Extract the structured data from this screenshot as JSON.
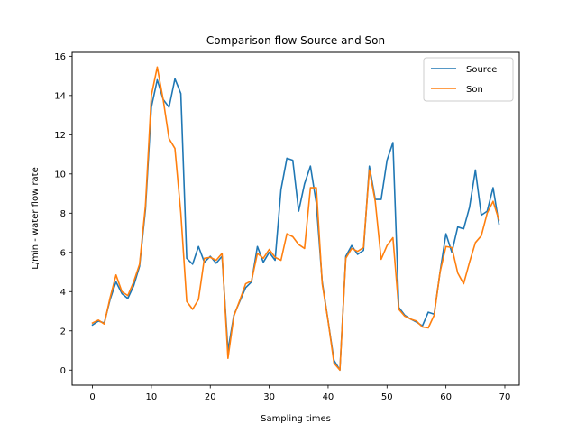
{
  "chart_data": {
    "type": "line",
    "title": "Comparison flow Source and Son",
    "xlabel": "Sampling times",
    "ylabel": "L/min - water flow rate",
    "xlim": [
      -3.45,
      72.45
    ],
    "ylim": [
      -0.77,
      16.2
    ],
    "xticks": [
      0,
      10,
      20,
      30,
      40,
      50,
      60,
      70
    ],
    "yticks": [
      0,
      2,
      4,
      6,
      8,
      10,
      12,
      14,
      16
    ],
    "grid": false,
    "legend_position": "top-right",
    "series": [
      {
        "name": "Source",
        "color": "#1f77b4",
        "x": [
          0,
          1,
          2,
          3,
          4,
          5,
          6,
          7,
          8,
          9,
          10,
          11,
          12,
          13,
          14,
          15,
          16,
          17,
          18,
          19,
          20,
          21,
          22,
          23,
          24,
          25,
          26,
          27,
          28,
          29,
          30,
          31,
          32,
          33,
          34,
          35,
          36,
          37,
          38,
          39,
          40,
          41,
          42,
          43,
          44,
          45,
          46,
          47,
          48,
          49,
          50,
          51,
          52,
          53,
          54,
          55,
          56,
          57,
          58,
          59,
          60,
          61,
          62,
          63,
          64,
          65,
          66,
          67,
          68,
          69
        ],
        "values": [
          2.3,
          2.5,
          2.4,
          3.6,
          4.5,
          3.9,
          3.65,
          4.3,
          5.3,
          8.2,
          13.4,
          14.8,
          13.8,
          13.4,
          14.85,
          14.1,
          5.7,
          5.4,
          6.3,
          5.5,
          5.8,
          5.45,
          5.8,
          1.0,
          2.8,
          3.5,
          4.2,
          4.5,
          6.3,
          5.5,
          6.0,
          5.6,
          9.2,
          10.8,
          10.7,
          8.1,
          9.5,
          10.4,
          8.5,
          4.5,
          2.5,
          0.5,
          0.0,
          5.8,
          6.35,
          5.9,
          6.1,
          10.4,
          8.7,
          8.7,
          10.7,
          11.6,
          3.2,
          2.8,
          2.6,
          2.45,
          2.25,
          2.95,
          2.85,
          5.0,
          6.95,
          6.0,
          7.3,
          7.2,
          8.3,
          10.2,
          7.9,
          8.1,
          9.3,
          7.45
        ]
      },
      {
        "name": "Son",
        "color": "#ff7f0e",
        "x": [
          0,
          1,
          2,
          3,
          4,
          5,
          6,
          7,
          8,
          9,
          10,
          11,
          12,
          13,
          14,
          15,
          16,
          17,
          18,
          19,
          20,
          21,
          22,
          23,
          24,
          25,
          26,
          27,
          28,
          29,
          30,
          31,
          32,
          33,
          34,
          35,
          36,
          37,
          38,
          39,
          40,
          41,
          42,
          43,
          44,
          45,
          46,
          47,
          48,
          49,
          50,
          51,
          52,
          53,
          54,
          55,
          56,
          57,
          58,
          59,
          60,
          61,
          62,
          63,
          64,
          65,
          66,
          67,
          68,
          69
        ],
        "values": [
          2.4,
          2.55,
          2.35,
          3.7,
          4.85,
          4.0,
          3.8,
          4.5,
          5.4,
          8.4,
          14.0,
          15.45,
          13.8,
          11.8,
          11.3,
          8.0,
          3.5,
          3.1,
          3.6,
          5.7,
          5.75,
          5.6,
          5.95,
          0.6,
          2.75,
          3.55,
          4.4,
          4.55,
          5.95,
          5.7,
          6.15,
          5.75,
          5.6,
          6.95,
          6.8,
          6.4,
          6.2,
          9.3,
          9.3,
          4.4,
          2.5,
          0.35,
          0.0,
          5.7,
          6.2,
          6.05,
          6.25,
          10.2,
          8.6,
          5.65,
          6.35,
          6.75,
          3.1,
          2.75,
          2.6,
          2.5,
          2.2,
          2.15,
          2.8,
          5.0,
          6.3,
          6.25,
          4.95,
          4.4,
          5.5,
          6.5,
          6.85,
          8.0,
          8.6,
          7.65
        ]
      }
    ]
  }
}
